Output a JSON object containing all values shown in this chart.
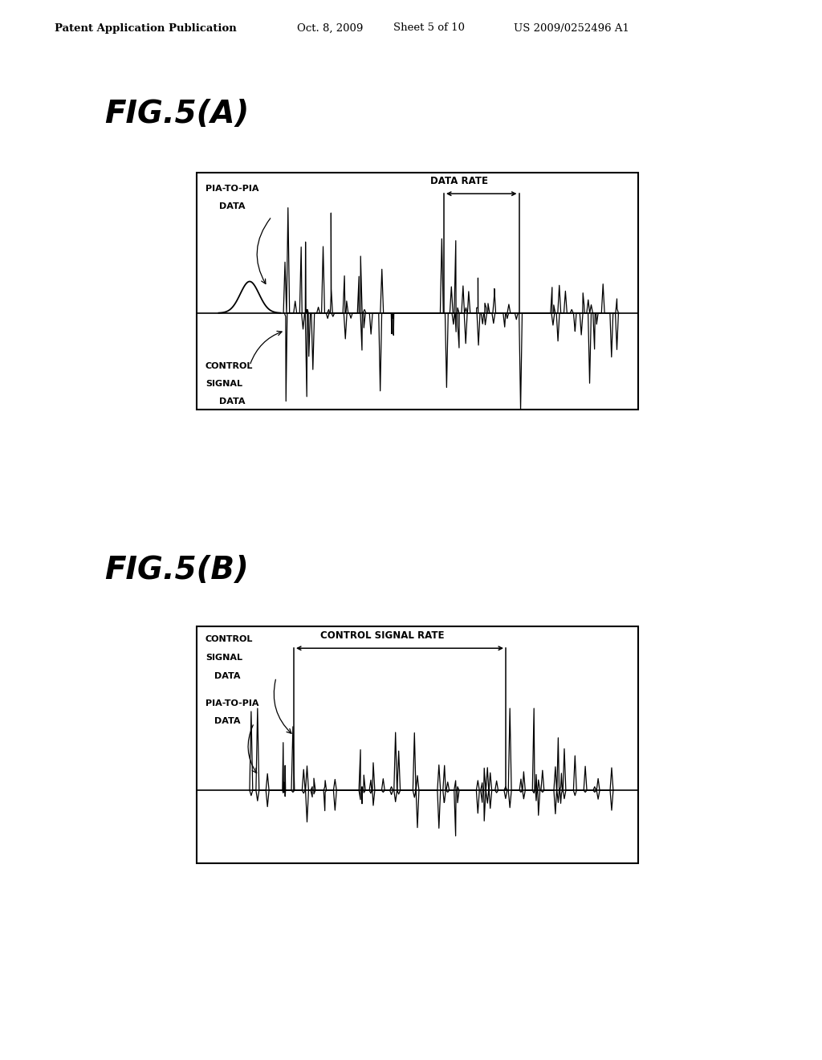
{
  "bg_color": "#ffffff",
  "header_text": "Patent Application Publication",
  "header_date": "Oct. 8, 2009",
  "header_sheet": "Sheet 5 of 10",
  "header_patent": "US 2009/0252496 A1",
  "fig_a_label": "FIG.5(A)",
  "fig_b_label": "FIG.5(B)",
  "panel_a_pia": "PIA-TO-PIA",
  "panel_a_pia2": "DATA",
  "panel_a_rate": "DATA RATE",
  "panel_a_ctrl1": "CONTROL",
  "panel_a_ctrl2": "SIGNAL",
  "panel_a_ctrl3": "DATA",
  "panel_b_ctrl1": "CONTROL",
  "panel_b_ctrl2": "SIGNAL",
  "panel_b_ctrl3": "DATA",
  "panel_b_rate": "CONTROL SIGNAL RATE",
  "panel_b_pia1": "PIA-TO-PIA",
  "panel_b_pia2": "DATA"
}
